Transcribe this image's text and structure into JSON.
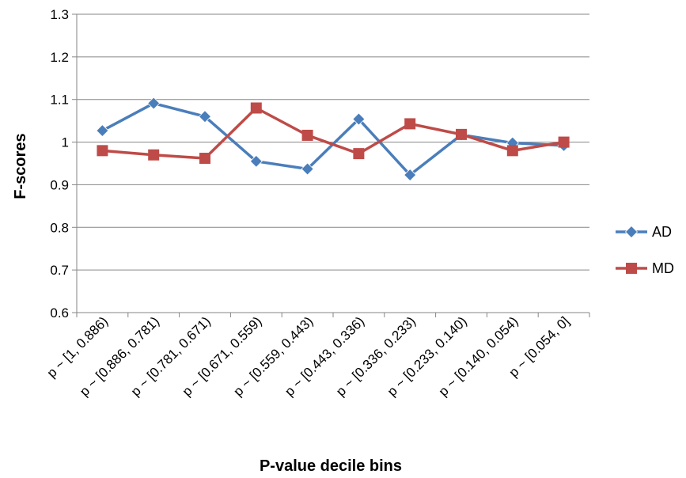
{
  "chart_data": {
    "type": "line",
    "title": "",
    "xlabel": "P-value decile bins",
    "ylabel": "F-scores",
    "ylim": [
      0.6,
      1.3
    ],
    "yticks": [
      "0.6",
      "0.7",
      "0.8",
      "0.9",
      "1",
      "1.1",
      "1.2",
      "1.3"
    ],
    "grid": true,
    "legend": "right",
    "categories": [
      "p ~ [1, 0.886)",
      "p ~ [0.886, 0.781)",
      "p ~ [0.781, 0.671)",
      "p ~ [0.671, 0.559)",
      "p ~ [0.559, 0.443)",
      "p ~ [0.443, 0.336)",
      "p ~ [0.336, 0.233)",
      "p ~ [0.233, 0.140)",
      "p ~ [0.140, 0.054)",
      "p ~ [0.054, 0]"
    ],
    "series": [
      {
        "name": "AD",
        "color": "#4a7ebb",
        "marker": "diamond",
        "values": [
          1.027,
          1.091,
          1.06,
          0.955,
          0.937,
          1.054,
          0.923,
          1.017,
          0.998,
          0.992
        ]
      },
      {
        "name": "MD",
        "color": "#be4b48",
        "marker": "square",
        "values": [
          0.98,
          0.97,
          0.962,
          1.08,
          1.016,
          0.973,
          1.043,
          1.018,
          0.98,
          1.0
        ]
      }
    ]
  }
}
